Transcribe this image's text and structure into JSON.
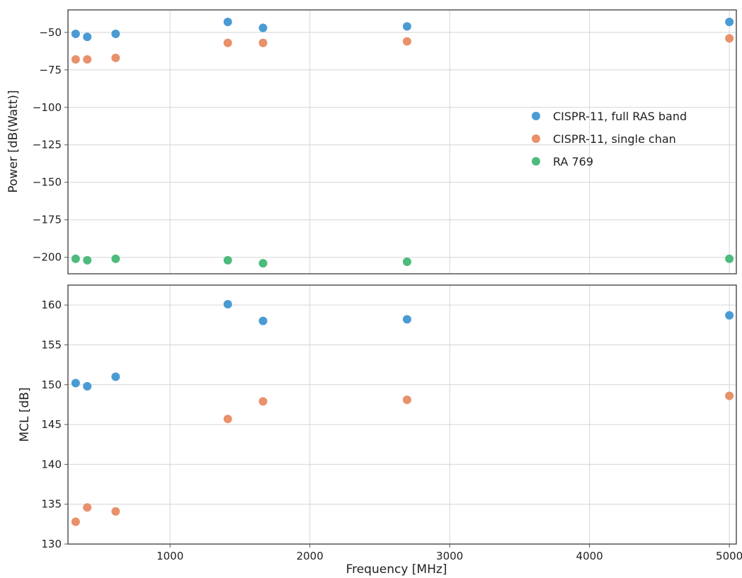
{
  "chart_data": [
    {
      "type": "scatter",
      "title": "",
      "xlabel": "",
      "ylabel": "Power [dB(Watt)]",
      "xlim": [
        270,
        5050
      ],
      "ylim": [
        -211,
        -35
      ],
      "xticks": [
        1000,
        2000,
        3000,
        4000,
        5000
      ],
      "yticks": [
        -50,
        -75,
        -100,
        -125,
        -150,
        -175,
        -200
      ],
      "grid": true,
      "legend_position": "right",
      "series": [
        {
          "name": "CISPR-11, full RAS band",
          "color": "#4a9bd4",
          "x": [
            325,
            408,
            611,
            1413,
            1665,
            2695,
            5000
          ],
          "y": [
            -51,
            -53,
            -51,
            -43,
            -47,
            -46,
            -43
          ]
        },
        {
          "name": "CISPR-11, single chan",
          "color": "#e8916b",
          "x": [
            325,
            408,
            611,
            1413,
            1665,
            2695,
            5000
          ],
          "y": [
            -68,
            -68,
            -67,
            -57,
            -57,
            -56,
            -54
          ]
        },
        {
          "name": "RA 769",
          "color": "#4cbb7d",
          "x": [
            325,
            408,
            611,
            1413,
            1665,
            2695,
            5000
          ],
          "y": [
            -201,
            -202,
            -201,
            -202,
            -204,
            -203,
            -201
          ]
        }
      ]
    },
    {
      "type": "scatter",
      "title": "",
      "xlabel": "Frequency [MHz]",
      "ylabel": "MCL [dB]",
      "xlim": [
        270,
        5050
      ],
      "ylim": [
        130,
        162.5
      ],
      "xticks": [
        1000,
        2000,
        3000,
        4000,
        5000
      ],
      "yticks": [
        130,
        135,
        140,
        145,
        150,
        155,
        160
      ],
      "grid": true,
      "series": [
        {
          "color": "#4a9bd4",
          "x": [
            325,
            408,
            611,
            1413,
            1665,
            2695,
            5000
          ],
          "y": [
            150.2,
            149.8,
            151.0,
            160.1,
            158.0,
            158.2,
            158.7
          ]
        },
        {
          "color": "#e8916b",
          "x": [
            325,
            408,
            611,
            1413,
            1665,
            2695,
            5000
          ],
          "y": [
            132.8,
            134.6,
            134.1,
            145.7,
            147.9,
            148.1,
            148.6
          ]
        }
      ]
    }
  ]
}
